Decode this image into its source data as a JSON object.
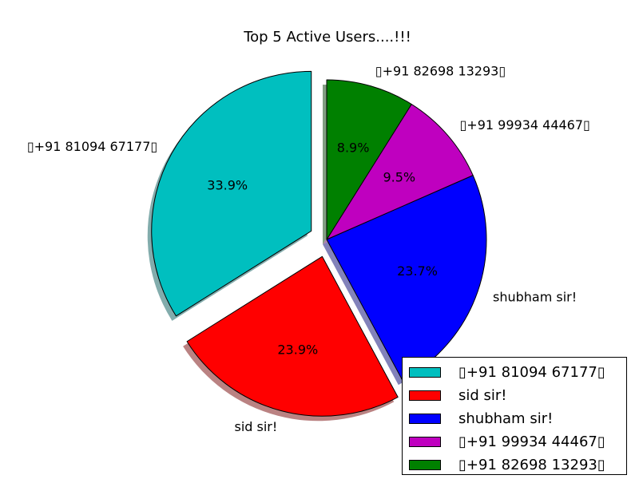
{
  "chart_data": {
    "type": "pie",
    "title": "Top 5 Active Users....!!!",
    "labels": [
      "▯+91 81094 67177▯",
      "sid sir!",
      "shubham sir!",
      "▯+91 99934 44467▯",
      "▯+91 82698 13293▯"
    ],
    "values": [
      33.9,
      23.9,
      23.7,
      9.5,
      8.9
    ],
    "pct_labels": [
      "33.9%",
      "23.9%",
      "23.7%",
      "9.5%",
      "8.9%"
    ],
    "colors": [
      "#00bfbf",
      "#ff0000",
      "#0000ff",
      "#bf00bf",
      "#008000"
    ],
    "exploded": [
      true,
      true,
      false,
      false,
      false
    ],
    "shadow": true,
    "start_angle_deg": 90,
    "legend_placement": "lower-right"
  }
}
